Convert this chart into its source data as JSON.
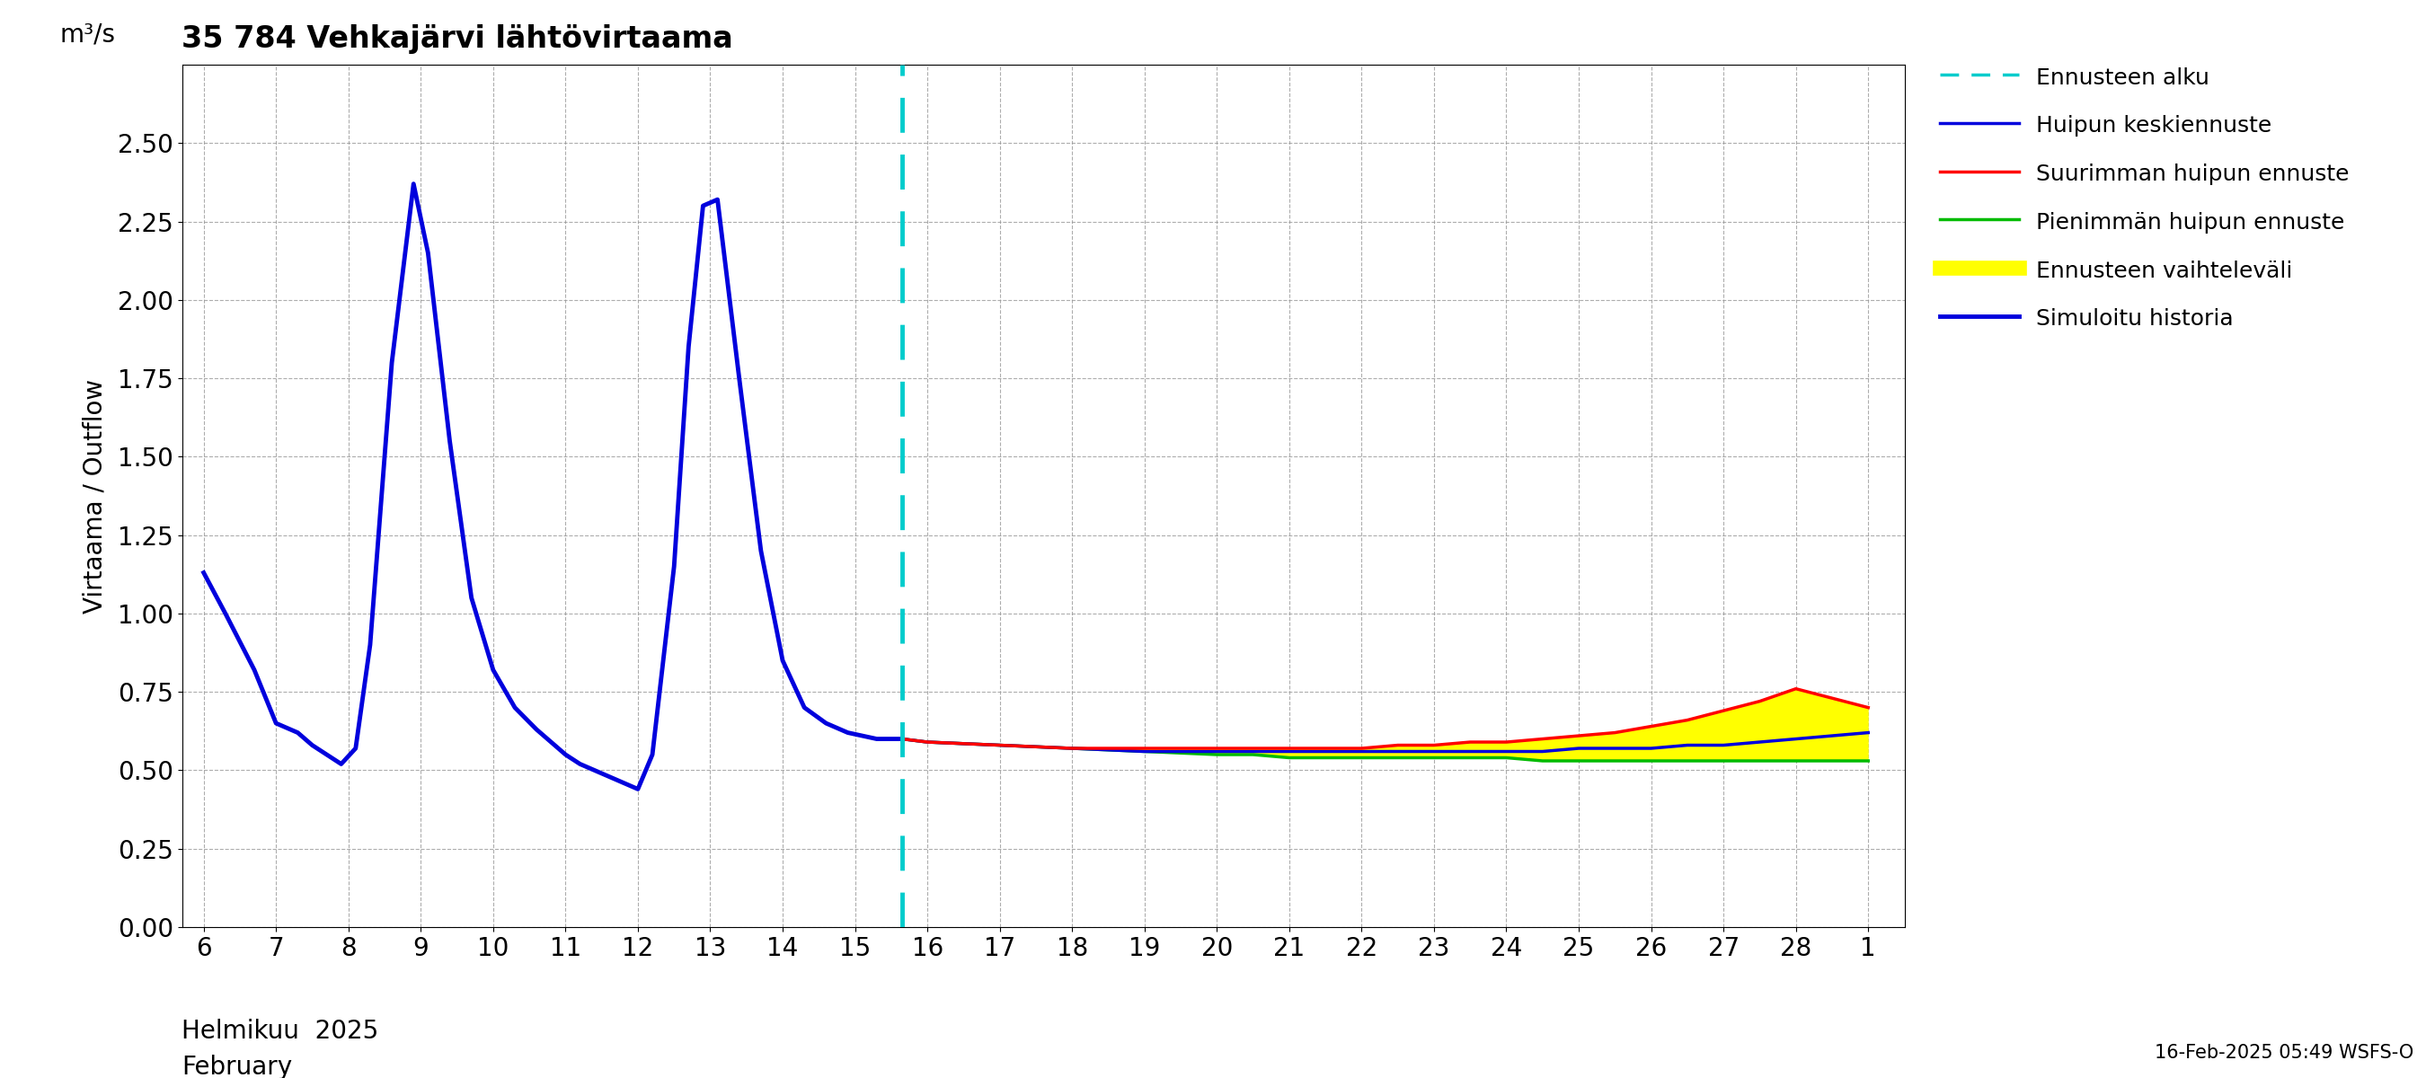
{
  "title": "35 784 Vehkajärvi lähtövirtaama",
  "ylabel_main": "Virtaama / Outflow",
  "ylabel_unit": "m³/s",
  "xlabel_line1": "Helmikuu  2025",
  "xlabel_line2": "February",
  "footer": "16-Feb-2025 05:49 WSFS-O",
  "ylim": [
    0.0,
    2.75
  ],
  "yticks": [
    0.0,
    0.25,
    0.5,
    0.75,
    1.0,
    1.25,
    1.5,
    1.75,
    2.0,
    2.25,
    2.5
  ],
  "forecast_start_x": 15.65,
  "history_color": "#0000dd",
  "mean_forecast_color": "#0000dd",
  "max_forecast_color": "#ff0000",
  "min_forecast_color": "#00bb00",
  "range_fill_color": "#ffff00",
  "forecast_line_color": "#00cccc",
  "history_x": [
    6.0,
    6.3,
    6.7,
    7.0,
    7.3,
    7.5,
    7.7,
    7.9,
    8.1,
    8.3,
    8.6,
    8.9,
    9.1,
    9.4,
    9.7,
    10.0,
    10.3,
    10.6,
    10.9,
    11.0,
    11.2,
    11.5,
    11.8,
    12.0,
    12.2,
    12.5,
    12.7,
    12.9,
    13.1,
    13.4,
    13.7,
    14.0,
    14.3,
    14.6,
    14.9,
    15.1,
    15.3,
    15.5,
    15.65
  ],
  "history_y": [
    1.13,
    1.0,
    0.82,
    0.65,
    0.62,
    0.58,
    0.55,
    0.52,
    0.57,
    0.9,
    1.8,
    2.37,
    2.15,
    1.55,
    1.05,
    0.82,
    0.7,
    0.63,
    0.57,
    0.55,
    0.52,
    0.49,
    0.46,
    0.44,
    0.55,
    1.15,
    1.85,
    2.3,
    2.32,
    1.75,
    1.2,
    0.85,
    0.7,
    0.65,
    0.62,
    0.61,
    0.6,
    0.6,
    0.6
  ],
  "forecast_x": [
    15.65,
    16.0,
    17.0,
    18.0,
    19.0,
    20.0,
    20.5,
    21.0,
    21.5,
    22.0,
    22.5,
    23.0,
    23.5,
    24.0,
    24.5,
    25.0,
    25.5,
    26.0,
    26.5,
    27.0,
    27.5,
    28.0,
    28.5,
    29.0
  ],
  "mean_y": [
    0.6,
    0.59,
    0.58,
    0.57,
    0.56,
    0.56,
    0.56,
    0.56,
    0.56,
    0.56,
    0.56,
    0.56,
    0.56,
    0.56,
    0.56,
    0.57,
    0.57,
    0.57,
    0.58,
    0.58,
    0.59,
    0.6,
    0.61,
    0.62
  ],
  "max_y": [
    0.6,
    0.59,
    0.58,
    0.57,
    0.57,
    0.57,
    0.57,
    0.57,
    0.57,
    0.57,
    0.58,
    0.58,
    0.59,
    0.59,
    0.6,
    0.61,
    0.62,
    0.64,
    0.66,
    0.69,
    0.72,
    0.76,
    0.73,
    0.7
  ],
  "min_y": [
    0.6,
    0.59,
    0.58,
    0.57,
    0.56,
    0.55,
    0.55,
    0.54,
    0.54,
    0.54,
    0.54,
    0.54,
    0.54,
    0.54,
    0.53,
    0.53,
    0.53,
    0.53,
    0.53,
    0.53,
    0.53,
    0.53,
    0.53,
    0.53
  ],
  "xtick_positions": [
    6,
    7,
    8,
    9,
    10,
    11,
    12,
    13,
    14,
    15,
    16,
    17,
    18,
    19,
    20,
    21,
    22,
    23,
    24,
    25,
    26,
    27,
    28,
    29
  ],
  "xtick_labels": [
    "6",
    "7",
    "8",
    "9",
    "10",
    "11",
    "12",
    "13",
    "14",
    "15",
    "16",
    "17",
    "18",
    "19",
    "20",
    "21",
    "22",
    "23",
    "24",
    "25",
    "26",
    "27",
    "28",
    "1"
  ],
  "xlim": [
    5.7,
    29.5
  ],
  "background_color": "#ffffff",
  "grid_color": "#999999"
}
